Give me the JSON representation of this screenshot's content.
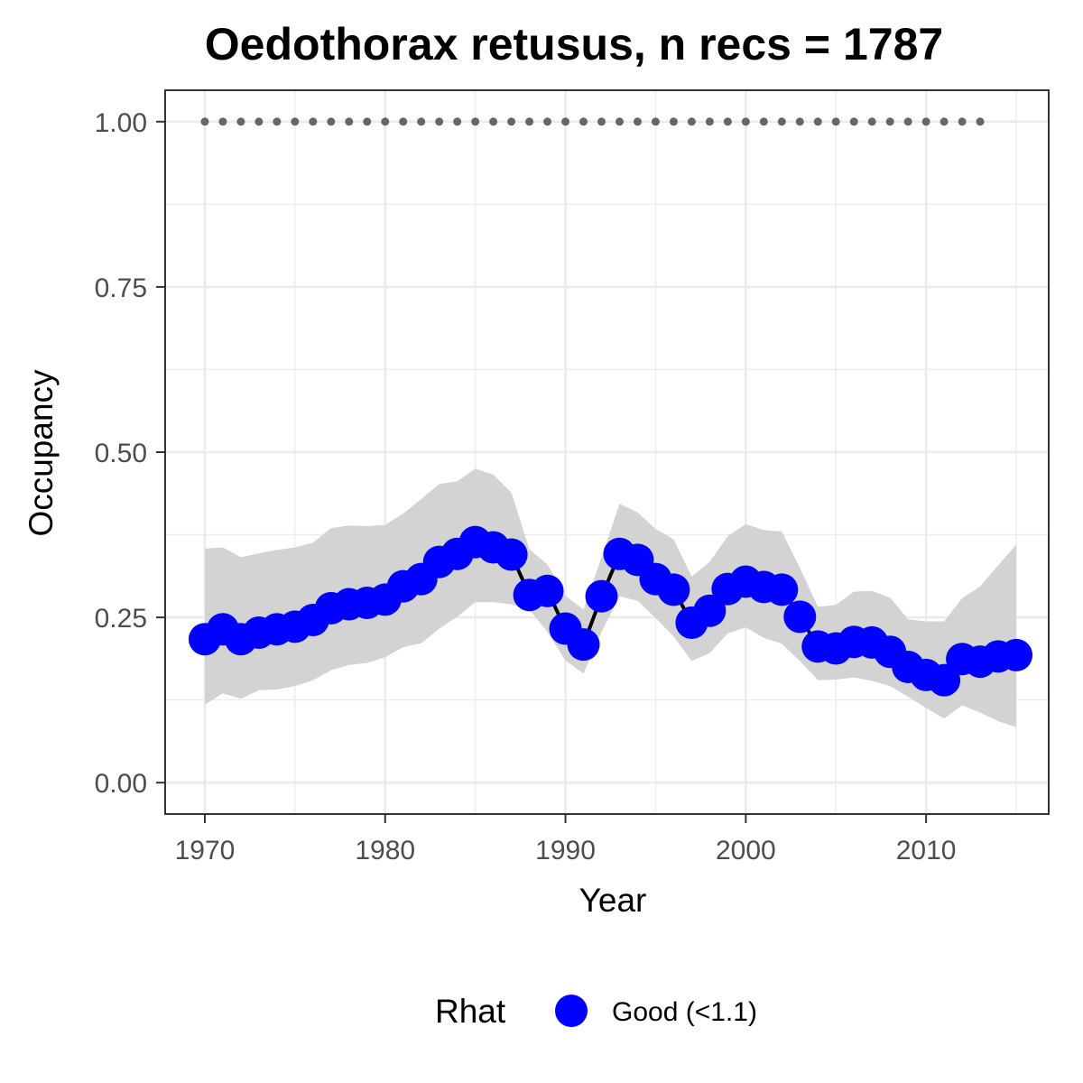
{
  "chart_data": {
    "type": "line",
    "title": "Oedothorax retusus, n recs = 1787",
    "xlabel": "Year",
    "ylabel": "Occupancy",
    "xlim": [
      1967.8,
      2016.8
    ],
    "ylim": [
      -0.0475,
      1.0475
    ],
    "x_ticks": [
      1970,
      1980,
      1990,
      2000,
      2010
    ],
    "x_tick_labels": [
      "1970",
      "1980",
      "1990",
      "2000",
      "2010"
    ],
    "y_ticks": [
      0,
      0.25,
      0.5,
      0.75,
      1.0
    ],
    "y_tick_labels": [
      "0.00",
      "0.25",
      "0.50",
      "0.75",
      "1.00"
    ],
    "grid": true,
    "legend": {
      "title": "Rhat",
      "position": "bottom",
      "entries": [
        {
          "label": "Good (<1.1)",
          "color": "#0000ff"
        }
      ]
    },
    "colors": {
      "points": "#0000ff",
      "line": "#000000",
      "ribbon": "#d3d3d3",
      "ref_dots": "#666666",
      "grid": "#ebebeb",
      "panel_border": "#333333"
    },
    "series": [
      {
        "years": [
          1970,
          1971,
          1972,
          1973,
          1974,
          1975,
          1976,
          1977,
          1978,
          1979,
          1980,
          1981,
          1982,
          1983,
          1984,
          1985,
          1986,
          1987,
          1988,
          1989,
          1990,
          1991,
          1992,
          1993,
          1994,
          1995,
          1996,
          1997,
          1998,
          1999,
          2000,
          2001,
          2002,
          2003,
          2004,
          2005,
          2006,
          2007,
          2008,
          2009,
          2010,
          2011,
          2012,
          2013,
          2014,
          2015
        ],
        "occupancy": [
          0.217,
          0.232,
          0.217,
          0.227,
          0.232,
          0.236,
          0.246,
          0.264,
          0.27,
          0.272,
          0.277,
          0.297,
          0.308,
          0.334,
          0.346,
          0.364,
          0.356,
          0.345,
          0.284,
          0.29,
          0.233,
          0.209,
          0.282,
          0.346,
          0.337,
          0.308,
          0.292,
          0.242,
          0.26,
          0.293,
          0.304,
          0.296,
          0.292,
          0.251,
          0.206,
          0.203,
          0.213,
          0.212,
          0.198,
          0.175,
          0.163,
          0.155,
          0.187,
          0.183,
          0.191,
          0.193
        ],
        "lower": [
          0.118,
          0.135,
          0.127,
          0.14,
          0.141,
          0.146,
          0.155,
          0.17,
          0.178,
          0.181,
          0.19,
          0.205,
          0.211,
          0.233,
          0.251,
          0.273,
          0.273,
          0.27,
          0.262,
          0.228,
          0.185,
          0.165,
          0.228,
          0.282,
          0.275,
          0.249,
          0.221,
          0.184,
          0.196,
          0.226,
          0.235,
          0.219,
          0.21,
          0.184,
          0.155,
          0.156,
          0.159,
          0.154,
          0.146,
          0.13,
          0.113,
          0.097,
          0.117,
          0.106,
          0.093,
          0.084
        ],
        "upper": [
          0.354,
          0.356,
          0.341,
          0.347,
          0.352,
          0.356,
          0.363,
          0.385,
          0.389,
          0.388,
          0.39,
          0.407,
          0.429,
          0.452,
          0.456,
          0.475,
          0.466,
          0.439,
          0.353,
          0.33,
          0.283,
          0.262,
          0.341,
          0.422,
          0.409,
          0.384,
          0.368,
          0.312,
          0.334,
          0.373,
          0.391,
          0.382,
          0.38,
          0.325,
          0.266,
          0.269,
          0.289,
          0.29,
          0.28,
          0.247,
          0.244,
          0.244,
          0.279,
          0.297,
          0.329,
          0.36
        ]
      },
      {
        "years": [
          1970,
          1971,
          1972,
          1973,
          1974,
          1975,
          1976,
          1977,
          1978,
          1979,
          1980,
          1981,
          1982,
          1983,
          1984,
          1985,
          1986,
          1987,
          1988,
          1989,
          1990,
          1991,
          1992,
          1993,
          1994,
          1995,
          1996,
          1997,
          1998,
          1999,
          2000,
          2001,
          2002,
          2003,
          2004,
          2005,
          2006,
          2007,
          2008,
          2009,
          2010,
          2011,
          2012,
          2013
        ],
        "values": [
          1,
          1,
          1,
          1,
          1,
          1,
          1,
          1,
          1,
          1,
          1,
          1,
          1,
          1,
          1,
          1,
          1,
          1,
          1,
          1,
          1,
          1,
          1,
          1,
          1,
          1,
          1,
          1,
          1,
          1,
          1,
          1,
          1,
          1,
          1,
          1,
          1,
          1,
          1,
          1,
          1,
          1,
          1,
          1
        ]
      }
    ]
  }
}
